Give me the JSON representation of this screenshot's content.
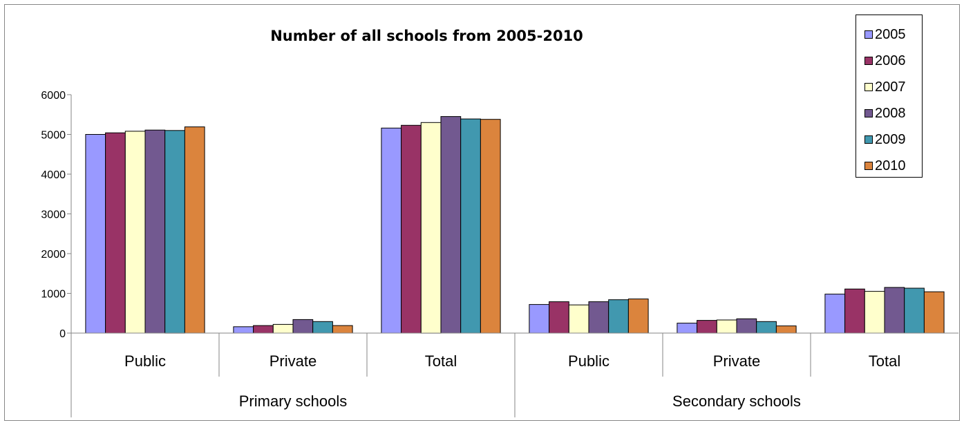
{
  "chart_data": {
    "type": "bar",
    "title": "Number of all schools from 2005-2010",
    "xlabel": "",
    "ylabel": "",
    "ylim": [
      0,
      6000
    ],
    "yticks": [
      0,
      1000,
      2000,
      3000,
      4000,
      5000,
      6000
    ],
    "grid": false,
    "legend_position": "top-right",
    "groups": [
      {
        "label": "Primary schools",
        "categories": [
          "Public",
          "Private",
          "Total"
        ]
      },
      {
        "label": "Secondary schools",
        "categories": [
          "Public",
          "Private",
          "Total"
        ]
      }
    ],
    "categories": [
      "Public",
      "Private",
      "Total",
      "Public",
      "Private",
      "Total"
    ],
    "series": [
      {
        "name": "2005",
        "color": "#9999FF",
        "values": [
          5000,
          160,
          5160,
          720,
          250,
          980
        ]
      },
      {
        "name": "2006",
        "color": "#993366",
        "values": [
          5040,
          190,
          5230,
          790,
          320,
          1110
        ]
      },
      {
        "name": "2007",
        "color": "#FFFFCC",
        "values": [
          5080,
          220,
          5300,
          710,
          330,
          1050
        ]
      },
      {
        "name": "2008",
        "color": "#725990",
        "values": [
          5110,
          340,
          5450,
          790,
          360,
          1150
        ]
      },
      {
        "name": "2009",
        "color": "#4198AF",
        "values": [
          5100,
          290,
          5390,
          840,
          290,
          1130
        ]
      },
      {
        "name": "2010",
        "color": "#DB843D",
        "values": [
          5190,
          190,
          5380,
          860,
          180,
          1040
        ]
      }
    ]
  }
}
